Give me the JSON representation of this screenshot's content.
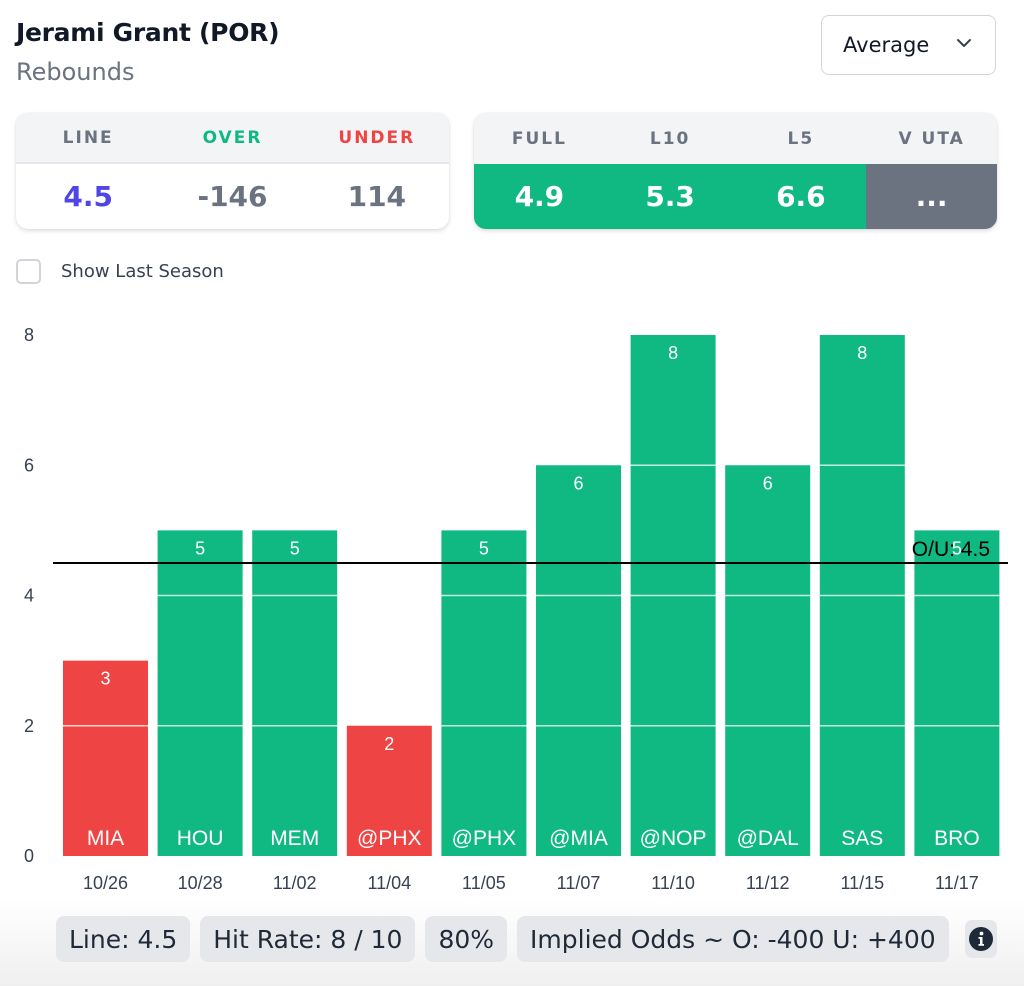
{
  "header": {
    "player": "Jerami Grant (POR)",
    "stat": "Rebounds"
  },
  "mode_select": {
    "value": "Average",
    "icon": "chevron-down-icon"
  },
  "line_card": {
    "headers": [
      "LINE",
      "OVER",
      "UNDER"
    ],
    "values": [
      "4.5",
      "-146",
      "114"
    ],
    "colors": {
      "line_header": "#6b7280",
      "over_header": "#10b981",
      "under_header": "#ef4444",
      "line_value": "#4f46e5",
      "odds_value": "#6b7280"
    }
  },
  "avg_card": {
    "headers": [
      "FULL",
      "L10",
      "L5",
      "V UTA"
    ],
    "values": [
      "4.9",
      "5.3",
      "6.6",
      "..."
    ]
  },
  "show_last_season": {
    "label": "Show Last Season",
    "checked": false
  },
  "chart_data": {
    "type": "bar",
    "title": "",
    "xlabel": "",
    "ylabel": "",
    "ylim": [
      0,
      8
    ],
    "yticks": [
      0,
      2,
      4,
      6,
      8
    ],
    "grid": true,
    "categories": [
      "10/26",
      "10/28",
      "11/02",
      "11/04",
      "11/05",
      "11/07",
      "11/10",
      "11/12",
      "11/15",
      "11/17"
    ],
    "opponents": [
      "MIA",
      "HOU",
      "MEM",
      "@PHX",
      "@PHX",
      "@MIA",
      "@NOP",
      "@DAL",
      "SAS",
      "BRO"
    ],
    "values": [
      3,
      5,
      5,
      2,
      5,
      6,
      8,
      6,
      8,
      5
    ],
    "reference_line": {
      "value": 4.5,
      "label": "O/U: 4.5"
    },
    "colors": {
      "over": "#10b981",
      "under": "#ef4444",
      "line": "#000000"
    }
  },
  "footer": {
    "line": "Line: 4.5",
    "hit_rate": "Hit Rate: 8 / 10",
    "hit_pct": "80%",
    "implied_odds": "Implied Odds ~ O: -400 U: +400",
    "info_icon": "info-icon"
  }
}
